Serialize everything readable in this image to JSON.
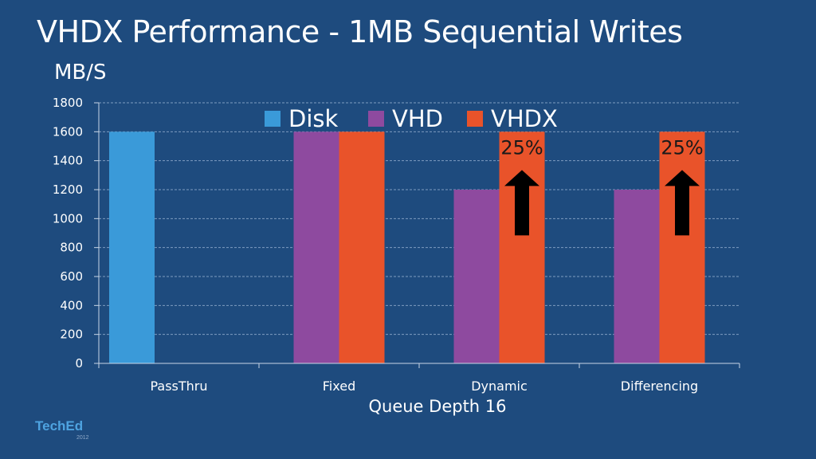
{
  "colors": {
    "background": "#1e4b7e",
    "grid": "#7f9dc0",
    "axis": "#c8d6e6",
    "arrow": "#000000",
    "annotation_text": "#1a1a1a"
  },
  "logo": {
    "sub": "",
    "main": "TechEd",
    "year": "2012"
  },
  "chart_data": {
    "type": "bar",
    "title": "VHDX Performance - 1MB Sequential Writes",
    "ylabel": "MB/S",
    "xlabel": "Queue Depth 16",
    "ylim": [
      0,
      1800
    ],
    "yticks": [
      0,
      200,
      400,
      600,
      800,
      1000,
      1200,
      1400,
      1600,
      1800
    ],
    "grid": true,
    "legend_position": "top",
    "categories": [
      "PassThru",
      "Fixed",
      "Dynamic",
      "Differencing"
    ],
    "series": [
      {
        "name": "Disk",
        "color": "#3a9ad9",
        "values": [
          1600,
          null,
          null,
          null
        ]
      },
      {
        "name": "VHD",
        "color": "#8e4a9f",
        "values": [
          null,
          1600,
          1200,
          1200
        ]
      },
      {
        "name": "VHDX",
        "color": "#e9532a",
        "values": [
          null,
          1600,
          1600,
          1600
        ]
      }
    ],
    "annotations": [
      {
        "category": "Dynamic",
        "series": "VHDX",
        "text": "25%",
        "arrow": "up"
      },
      {
        "category": "Differencing",
        "series": "VHDX",
        "text": "25%",
        "arrow": "up"
      }
    ]
  }
}
